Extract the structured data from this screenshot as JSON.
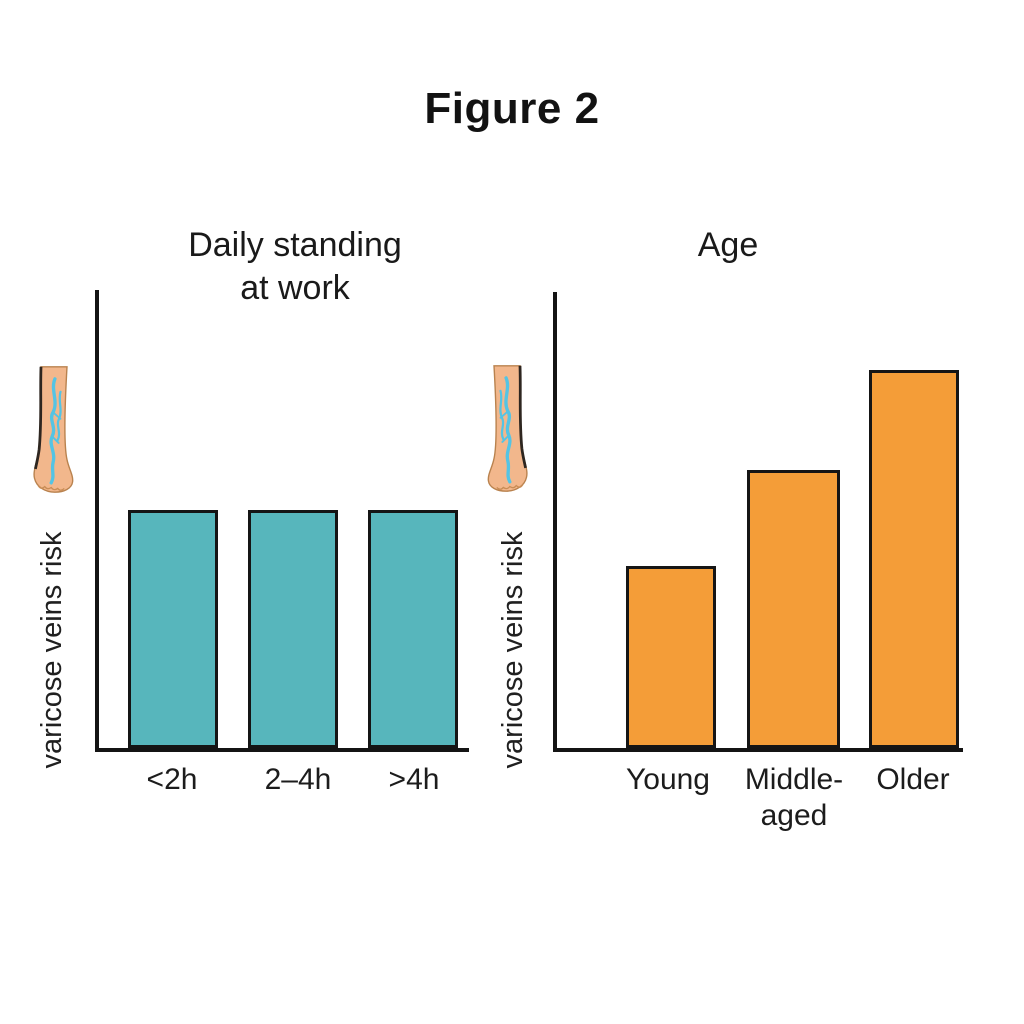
{
  "figure": {
    "title": "Figure 2"
  },
  "colors": {
    "background": "#ffffff",
    "axis": "#141414",
    "text": "#1a1a1a",
    "teal_bar": "#57b6bc",
    "orange_bar": "#f49d38",
    "bar_border": "#151515",
    "leg_skin": "#f2b78c",
    "vein_blue": "#54c4e4"
  },
  "icons": {
    "left_chart_icon": "varicose-leg-icon",
    "right_chart_icon": "varicose-leg-icon"
  },
  "chart_data": [
    {
      "type": "bar",
      "title": "Daily standing at work",
      "title_lines": [
        "Daily standing",
        "at work"
      ],
      "ylabel": "varicose veins risk",
      "xlabel": "",
      "categories": [
        "<2h",
        "2–4h",
        ">4h"
      ],
      "values": [
        52,
        52,
        52
      ],
      "value_note": "no numeric y-scale shown; values are bar heights as % of axis height",
      "ylim": [
        0,
        100
      ],
      "bar_color": "#57b6bc",
      "grid": false,
      "legend": false
    },
    {
      "type": "bar",
      "title": "Age",
      "title_lines": [
        "Age"
      ],
      "ylabel": "varicose veins risk",
      "xlabel": "",
      "categories": [
        "Young",
        "Middle-aged",
        "Older"
      ],
      "values": [
        40,
        61,
        83
      ],
      "value_note": "no numeric y-scale shown; values are bar heights as % of axis height",
      "ylim": [
        0,
        100
      ],
      "bar_color": "#f49d38",
      "grid": false,
      "legend": false
    }
  ]
}
